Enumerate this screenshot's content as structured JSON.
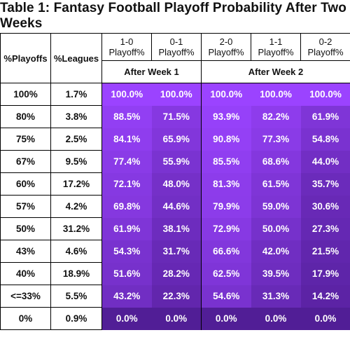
{
  "title": "Table 1: Fantasy Football Playoff Probability After Two Weeks",
  "headers": {
    "playoffs": "%Playoffs",
    "leagues": "%Leagues",
    "cols": [
      {
        "record": "1-0",
        "label": "Playoff%"
      },
      {
        "record": "0-1",
        "label": "Playoff%"
      },
      {
        "record": "2-0",
        "label": "Playoff%"
      },
      {
        "record": "1-1",
        "label": "Playoff%"
      },
      {
        "record": "0-2",
        "label": "Playoff%"
      }
    ],
    "group1": "After Week 1",
    "group2": "After Week 2"
  },
  "colors": {
    "high": "#9b43ff",
    "low": "#511e96"
  },
  "chart_data": {
    "type": "table",
    "title": "Table 1: Fantasy Football Playoff Probability After Two Weeks",
    "columns": [
      "%Playoffs",
      "%Leagues",
      "1-0 Playoff%",
      "0-1 Playoff%",
      "2-0 Playoff%",
      "1-1 Playoff%",
      "0-2 Playoff%"
    ],
    "rows": [
      [
        "100%",
        "1.7%",
        "100.0%",
        "100.0%",
        "100.0%",
        "100.0%",
        "100.0%"
      ],
      [
        "80%",
        "3.8%",
        "88.5%",
        "71.5%",
        "93.9%",
        "82.2%",
        "61.9%"
      ],
      [
        "75%",
        "2.5%",
        "84.1%",
        "65.9%",
        "90.8%",
        "77.3%",
        "54.8%"
      ],
      [
        "67%",
        "9.5%",
        "77.4%",
        "55.9%",
        "85.5%",
        "68.6%",
        "44.0%"
      ],
      [
        "60%",
        "17.2%",
        "72.1%",
        "48.0%",
        "81.3%",
        "61.5%",
        "35.7%"
      ],
      [
        "57%",
        "4.2%",
        "69.8%",
        "44.6%",
        "79.9%",
        "59.0%",
        "30.6%"
      ],
      [
        "50%",
        "31.2%",
        "61.9%",
        "38.1%",
        "72.9%",
        "50.0%",
        "27.3%"
      ],
      [
        "43%",
        "4.6%",
        "54.3%",
        "31.7%",
        "66.6%",
        "42.0%",
        "21.5%"
      ],
      [
        "40%",
        "18.9%",
        "51.6%",
        "28.2%",
        "62.5%",
        "39.5%",
        "17.9%"
      ],
      [
        "<=33%",
        "5.5%",
        "43.2%",
        "22.3%",
        "54.6%",
        "31.3%",
        "14.2%"
      ],
      [
        "0%",
        "0.9%",
        "0.0%",
        "0.0%",
        "0.0%",
        "0.0%",
        "0.0%"
      ]
    ]
  }
}
